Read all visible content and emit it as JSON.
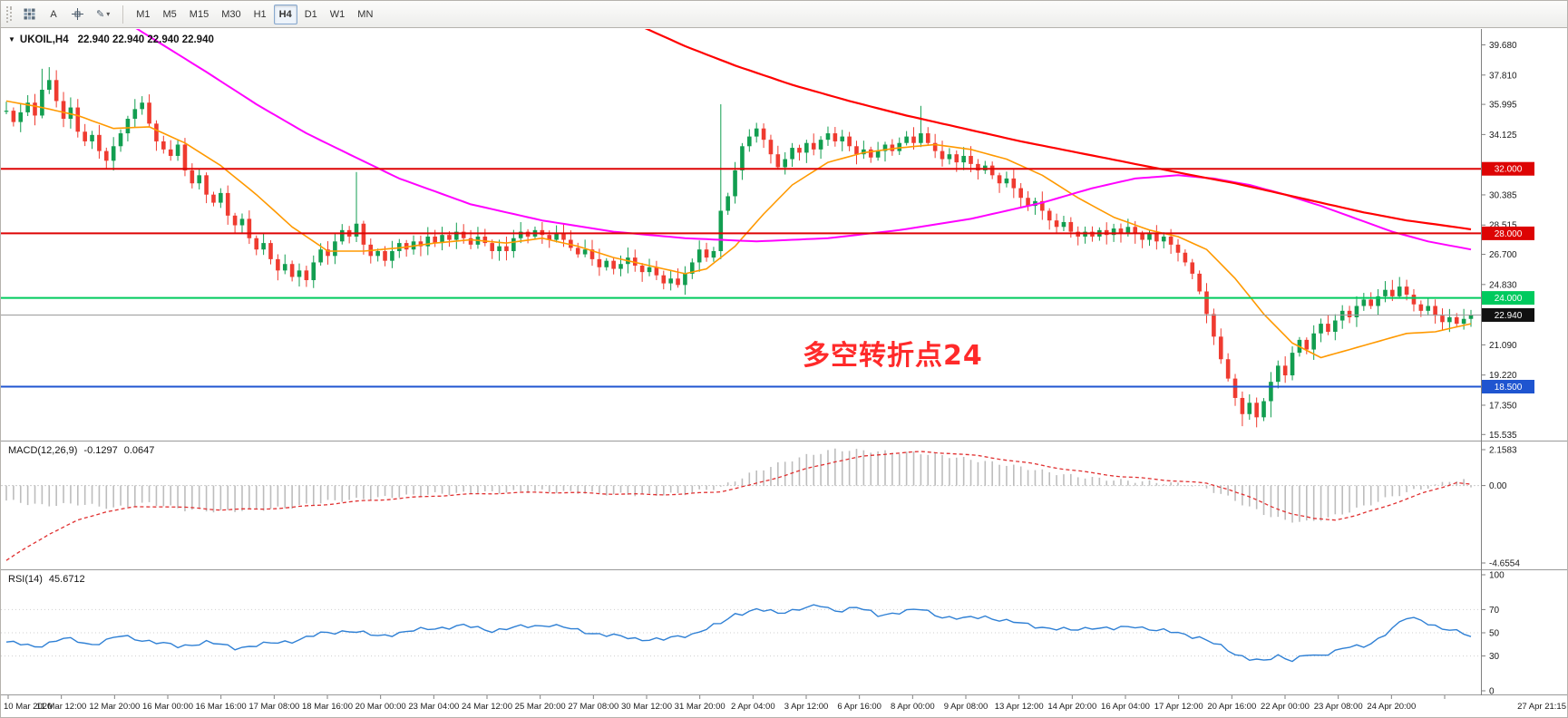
{
  "icons": {
    "collapse_arrow": "▼",
    "pencil": "✎",
    "caret": "▾"
  },
  "toolbar": {
    "tool_a_label": "A",
    "timeframes": [
      "M1",
      "M5",
      "M15",
      "M30",
      "H1",
      "H4",
      "D1",
      "W1",
      "MN"
    ],
    "active_timeframe": "H4"
  },
  "chart": {
    "title_symbol": "UKOIL,H4",
    "title_ohlc": "22.940 22.940 22.940 22.940",
    "annotation_text": "多空转折点24",
    "price_axis_labels": [
      39.68,
      37.81,
      35.995,
      34.125,
      30.385,
      28.515,
      26.7,
      24.83,
      21.09,
      19.22,
      17.35,
      15.535
    ],
    "hlines": [
      {
        "price": 32.0,
        "badge": "32.000",
        "color": "#dd0404"
      },
      {
        "price": 28.0,
        "badge": "28.000",
        "color": "#dd0404"
      },
      {
        "price": 24.0,
        "badge": "24.000",
        "color": "#00ca5e"
      },
      {
        "price": 18.5,
        "badge": "18.500",
        "color": "#1f55d0"
      }
    ],
    "current_price": {
      "value": 22.94,
      "badge": "22.940",
      "line_color": "#9a9a9a",
      "badge_color": "#111111"
    },
    "colors": {
      "up": "#129e50",
      "down": "#ef3b30",
      "ma_fast": "#ff9900",
      "ma_mid": "#ff00ff",
      "ma_slow": "#ff0000"
    }
  },
  "macd_panel": {
    "label": "MACD(12,26,9)",
    "value_macd": "-0.1297",
    "value_signal": "0.0647",
    "axis_labels": [
      {
        "v": 2.1583,
        "text": "2.1583"
      },
      {
        "v": 0,
        "text": "0.00"
      },
      {
        "v": -4.6554,
        "text": "-4.6554"
      }
    ]
  },
  "rsi_panel": {
    "label": "RSI(14)",
    "value": "45.6712",
    "axis_labels": [
      100,
      70,
      50,
      30,
      0
    ],
    "levels": [
      70,
      50,
      30
    ]
  },
  "time_axis": {
    "labels": [
      "10 Mar 2020",
      "11 Mar 12:00",
      "12 Mar 20:00",
      "16 Mar 00:00",
      "16 Mar 16:00",
      "17 Mar 08:00",
      "18 Mar 16:00",
      "20 Mar 00:00",
      "23 Mar 04:00",
      "24 Mar 12:00",
      "25 Mar 20:00",
      "27 Mar 08:00",
      "30 Mar 12:00",
      "31 Mar 20:00",
      "2 Apr 04:00",
      "3 Apr 12:00",
      "6 Apr 16:00",
      "8 Apr 00:00",
      "9 Apr 08:00",
      "13 Apr 12:00",
      "14 Apr 20:00",
      "16 Apr 04:00",
      "17 Apr 12:00",
      "20 Apr 16:00",
      "22 Apr 00:00",
      "23 Apr 08:00",
      "24 Apr 20:00",
      "27 Apr 21:15"
    ]
  },
  "chart_data": {
    "type": "candlestick",
    "symbol": "UKOIL",
    "timeframe": "H4",
    "ylim": [
      15.0,
      40.8
    ],
    "first_open": 35.6,
    "closes": [
      35.6,
      34.9,
      35.5,
      36.1,
      35.3,
      36.9,
      37.5,
      36.2,
      35.1,
      35.8,
      34.3,
      33.7,
      34.1,
      33.1,
      32.5,
      33.4,
      34.2,
      35.1,
      35.7,
      36.1,
      34.8,
      33.7,
      33.2,
      32.8,
      33.5,
      31.9,
      31.1,
      31.6,
      30.4,
      29.9,
      30.5,
      29.1,
      28.5,
      28.9,
      27.7,
      27.0,
      27.4,
      26.4,
      25.7,
      26.1,
      25.3,
      25.7,
      25.1,
      26.2,
      27.0,
      26.6,
      27.5,
      28.2,
      27.8,
      28.6,
      27.3,
      26.6,
      26.9,
      26.3,
      26.9,
      27.4,
      27.0,
      27.5,
      27.2,
      27.8,
      27.4,
      27.9,
      27.6,
      28.1,
      27.7,
      27.3,
      27.8,
      27.4,
      26.9,
      27.2,
      26.9,
      27.7,
      28.1,
      27.8,
      28.2,
      27.9,
      27.6,
      28.0,
      27.6,
      27.1,
      26.7,
      27.0,
      26.4,
      25.9,
      26.3,
      25.8,
      26.1,
      26.5,
      26.0,
      25.6,
      25.9,
      25.4,
      24.9,
      25.2,
      24.8,
      25.5,
      26.2,
      27.0,
      26.5,
      26.9,
      29.4,
      30.3,
      31.9,
      33.4,
      34.0,
      34.5,
      33.8,
      32.9,
      32.1,
      32.6,
      33.3,
      33.0,
      33.6,
      33.2,
      33.8,
      34.2,
      33.7,
      34.0,
      33.4,
      32.9,
      33.2,
      32.7,
      33.1,
      33.5,
      33.1,
      33.6,
      34.0,
      33.6,
      34.2,
      33.6,
      33.1,
      32.6,
      32.9,
      32.4,
      32.8,
      32.3,
      31.9,
      32.2,
      31.6,
      31.1,
      31.4,
      30.8,
      30.2,
      29.7,
      30.0,
      29.4,
      28.8,
      28.4,
      28.7,
      28.1,
      27.8,
      28.1,
      27.8,
      28.2,
      27.9,
      28.3,
      28.0,
      28.4,
      28.0,
      27.6,
      28.0,
      27.5,
      27.8,
      27.3,
      26.8,
      26.2,
      25.5,
      24.4,
      23.0,
      21.6,
      20.2,
      19.0,
      17.8,
      16.8,
      17.5,
      16.6,
      17.6,
      18.8,
      19.8,
      19.2,
      20.6,
      21.4,
      20.8,
      21.8,
      22.4,
      21.9,
      22.6,
      23.2,
      22.8,
      23.5,
      23.9,
      23.5,
      24.1,
      24.5,
      24.1,
      24.7,
      24.2,
      23.6,
      23.2,
      23.5,
      22.9,
      22.5,
      22.8,
      22.4,
      22.7,
      22.94
    ],
    "wick_overrides": {
      "5": {
        "high": 38.2
      },
      "6": {
        "high": 38.3
      },
      "19": {
        "high": 36.5
      },
      "49": {
        "high": 31.8
      },
      "100": {
        "high": 36.0,
        "low": 26.4
      },
      "128": {
        "high": 35.9
      },
      "173": {
        "low": 16.05
      },
      "175": {
        "low": 15.98
      },
      "177": {
        "low": 16.6
      }
    },
    "ma_fast_points": [
      [
        0,
        36.2
      ],
      [
        5,
        35.8
      ],
      [
        10,
        35.3
      ],
      [
        15,
        34.5
      ],
      [
        20,
        34.6
      ],
      [
        25,
        33.6
      ],
      [
        30,
        32.2
      ],
      [
        35,
        30.4
      ],
      [
        40,
        28.4
      ],
      [
        45,
        26.9
      ],
      [
        50,
        26.9
      ],
      [
        55,
        27.1
      ],
      [
        60,
        27.4
      ],
      [
        65,
        27.6
      ],
      [
        70,
        27.4
      ],
      [
        75,
        27.7
      ],
      [
        80,
        27.2
      ],
      [
        85,
        26.5
      ],
      [
        90,
        26.0
      ],
      [
        95,
        25.5
      ],
      [
        98,
        25.8
      ],
      [
        102,
        27.2
      ],
      [
        106,
        29.2
      ],
      [
        110,
        31.0
      ],
      [
        115,
        32.4
      ],
      [
        120,
        33.0
      ],
      [
        125,
        33.3
      ],
      [
        130,
        33.5
      ],
      [
        135,
        33.2
      ],
      [
        140,
        32.6
      ],
      [
        145,
        31.6
      ],
      [
        150,
        30.2
      ],
      [
        155,
        29.0
      ],
      [
        160,
        28.2
      ],
      [
        164,
        27.8
      ],
      [
        168,
        27.0
      ],
      [
        172,
        25.2
      ],
      [
        176,
        23.0
      ],
      [
        180,
        21.2
      ],
      [
        184,
        20.3
      ],
      [
        188,
        20.8
      ],
      [
        192,
        21.3
      ],
      [
        196,
        21.8
      ],
      [
        200,
        21.9
      ],
      [
        205,
        22.4
      ]
    ],
    "ma_mid_points": [
      [
        0,
        46.0
      ],
      [
        10,
        43.0
      ],
      [
        20,
        40.2
      ],
      [
        28,
        38.0
      ],
      [
        35,
        36.0
      ],
      [
        42,
        34.2
      ],
      [
        48,
        32.9
      ],
      [
        55,
        31.4
      ],
      [
        65,
        29.8
      ],
      [
        75,
        28.8
      ],
      [
        85,
        28.1
      ],
      [
        95,
        27.7
      ],
      [
        105,
        27.5
      ],
      [
        115,
        27.7
      ],
      [
        125,
        28.2
      ],
      [
        135,
        28.9
      ],
      [
        145,
        29.9
      ],
      [
        152,
        30.8
      ],
      [
        158,
        31.4
      ],
      [
        164,
        31.6
      ],
      [
        169,
        31.4
      ],
      [
        174,
        31.0
      ],
      [
        179,
        30.4
      ],
      [
        184,
        29.7
      ],
      [
        189,
        28.9
      ],
      [
        194,
        28.1
      ],
      [
        199,
        27.5
      ],
      [
        205,
        27.0
      ]
    ],
    "ma_slow_points": [
      [
        88,
        41.0
      ],
      [
        95,
        39.6
      ],
      [
        102,
        38.4
      ],
      [
        110,
        37.2
      ],
      [
        118,
        36.2
      ],
      [
        126,
        35.3
      ],
      [
        134,
        34.5
      ],
      [
        142,
        33.7
      ],
      [
        150,
        33.0
      ],
      [
        158,
        32.3
      ],
      [
        166,
        31.6
      ],
      [
        172,
        31.1
      ],
      [
        178,
        30.5
      ],
      [
        184,
        29.9
      ],
      [
        190,
        29.3
      ],
      [
        196,
        28.8
      ],
      [
        201,
        28.5
      ],
      [
        205,
        28.25
      ]
    ],
    "macd": {
      "range": [
        -4.6554,
        2.1583
      ],
      "line_points": [
        [
          0,
          -0.9
        ],
        [
          5,
          -1.2
        ],
        [
          10,
          -1.1
        ],
        [
          15,
          -1.35
        ],
        [
          20,
          -1.05
        ],
        [
          25,
          -1.45
        ],
        [
          30,
          -1.55
        ],
        [
          35,
          -1.45
        ],
        [
          40,
          -1.3
        ],
        [
          45,
          -0.95
        ],
        [
          50,
          -0.8
        ],
        [
          55,
          -0.65
        ],
        [
          60,
          -0.5
        ],
        [
          65,
          -0.45
        ],
        [
          70,
          -0.38
        ],
        [
          75,
          -0.33
        ],
        [
          80,
          -0.42
        ],
        [
          85,
          -0.52
        ],
        [
          90,
          -0.56
        ],
        [
          95,
          -0.48
        ],
        [
          100,
          -0.1
        ],
        [
          104,
          0.7
        ],
        [
          108,
          1.3
        ],
        [
          112,
          1.8
        ],
        [
          116,
          2.16
        ],
        [
          120,
          2.1
        ],
        [
          124,
          2.0
        ],
        [
          128,
          1.95
        ],
        [
          132,
          1.75
        ],
        [
          136,
          1.5
        ],
        [
          140,
          1.25
        ],
        [
          144,
          0.95
        ],
        [
          148,
          0.65
        ],
        [
          152,
          0.45
        ],
        [
          156,
          0.3
        ],
        [
          160,
          0.22
        ],
        [
          164,
          0.1
        ],
        [
          167,
          -0.05
        ],
        [
          170,
          -0.5
        ],
        [
          173,
          -1.1
        ],
        [
          176,
          -1.7
        ],
        [
          179,
          -2.1
        ],
        [
          182,
          -2.2
        ],
        [
          185,
          -1.95
        ],
        [
          188,
          -1.55
        ],
        [
          191,
          -1.1
        ],
        [
          194,
          -0.65
        ],
        [
          197,
          -0.3
        ],
        [
          200,
          0.0
        ],
        [
          202,
          0.3
        ],
        [
          204,
          0.3
        ],
        [
          205,
          -0.13
        ]
      ],
      "signal_points": [
        [
          0,
          -4.5
        ],
        [
          3,
          -3.7
        ],
        [
          6,
          -2.9
        ],
        [
          10,
          -2.1
        ],
        [
          14,
          -1.55
        ],
        [
          18,
          -1.3
        ],
        [
          22,
          -1.25
        ],
        [
          26,
          -1.35
        ],
        [
          30,
          -1.45
        ],
        [
          35,
          -1.42
        ],
        [
          40,
          -1.32
        ],
        [
          45,
          -1.12
        ],
        [
          50,
          -0.92
        ],
        [
          55,
          -0.78
        ],
        [
          60,
          -0.62
        ],
        [
          65,
          -0.52
        ],
        [
          70,
          -0.45
        ],
        [
          75,
          -0.4
        ],
        [
          80,
          -0.44
        ],
        [
          85,
          -0.5
        ],
        [
          90,
          -0.54
        ],
        [
          95,
          -0.52
        ],
        [
          100,
          -0.35
        ],
        [
          104,
          0.0
        ],
        [
          108,
          0.5
        ],
        [
          112,
          1.0
        ],
        [
          116,
          1.45
        ],
        [
          120,
          1.75
        ],
        [
          124,
          1.95
        ],
        [
          128,
          2.02
        ],
        [
          132,
          1.95
        ],
        [
          136,
          1.78
        ],
        [
          140,
          1.55
        ],
        [
          144,
          1.28
        ],
        [
          148,
          1.0
        ],
        [
          152,
          0.75
        ],
        [
          156,
          0.55
        ],
        [
          160,
          0.4
        ],
        [
          164,
          0.28
        ],
        [
          168,
          0.12
        ],
        [
          171,
          -0.2
        ],
        [
          174,
          -0.7
        ],
        [
          177,
          -1.25
        ],
        [
          180,
          -1.7
        ],
        [
          183,
          -2.0
        ],
        [
          186,
          -2.05
        ],
        [
          189,
          -1.8
        ],
        [
          192,
          -1.4
        ],
        [
          195,
          -0.95
        ],
        [
          198,
          -0.5
        ],
        [
          201,
          -0.1
        ],
        [
          203,
          0.2
        ],
        [
          205,
          0.065
        ]
      ]
    },
    "rsi": {
      "range": [
        0,
        100
      ],
      "last": 45.6712,
      "points": [
        [
          0,
          42
        ],
        [
          4,
          38
        ],
        [
          8,
          45
        ],
        [
          12,
          40
        ],
        [
          16,
          47
        ],
        [
          20,
          43
        ],
        [
          24,
          38
        ],
        [
          28,
          42
        ],
        [
          32,
          37
        ],
        [
          36,
          40
        ],
        [
          40,
          43
        ],
        [
          44,
          49
        ],
        [
          48,
          52
        ],
        [
          52,
          47
        ],
        [
          56,
          51
        ],
        [
          60,
          54
        ],
        [
          64,
          56
        ],
        [
          68,
          52
        ],
        [
          72,
          55
        ],
        [
          76,
          57
        ],
        [
          80,
          52
        ],
        [
          84,
          48
        ],
        [
          88,
          45
        ],
        [
          92,
          44
        ],
        [
          96,
          49
        ],
        [
          100,
          58
        ],
        [
          102,
          66
        ],
        [
          105,
          70
        ],
        [
          108,
          67
        ],
        [
          111,
          71
        ],
        [
          114,
          73
        ],
        [
          116,
          69
        ],
        [
          119,
          72
        ],
        [
          122,
          65
        ],
        [
          125,
          68
        ],
        [
          128,
          70
        ],
        [
          131,
          64
        ],
        [
          134,
          62
        ],
        [
          137,
          64
        ],
        [
          140,
          60
        ],
        [
          143,
          57
        ],
        [
          146,
          54
        ],
        [
          149,
          52
        ],
        [
          152,
          55
        ],
        [
          155,
          53
        ],
        [
          158,
          56
        ],
        [
          161,
          52
        ],
        [
          164,
          50
        ],
        [
          167,
          46
        ],
        [
          170,
          38
        ],
        [
          172,
          32
        ],
        [
          174,
          28
        ],
        [
          176,
          25
        ],
        [
          178,
          30
        ],
        [
          180,
          27
        ],
        [
          182,
          31
        ],
        [
          184,
          29
        ],
        [
          186,
          35
        ],
        [
          188,
          39
        ],
        [
          190,
          37
        ],
        [
          192,
          44
        ],
        [
          194,
          55
        ],
        [
          196,
          63
        ],
        [
          198,
          60
        ],
        [
          200,
          56
        ],
        [
          202,
          53
        ],
        [
          204,
          49
        ],
        [
          205,
          45.67
        ]
      ]
    }
  }
}
